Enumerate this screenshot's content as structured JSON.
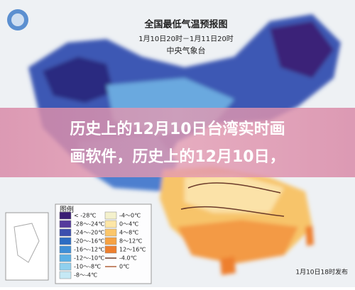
{
  "header": {
    "title": "全国最低气温预报图",
    "time": "1月10日20时－1月11日20时",
    "agency": "中央气象台"
  },
  "banner": {
    "lines": [
      "历史上的12月10日台湾实时画",
      "画软件，历史上的12月10日，"
    ]
  },
  "legend": {
    "title": "图例",
    "items": [
      {
        "label": "< -28℃",
        "color": "#3a1d74"
      },
      {
        "label": "-28～-24℃",
        "color": "#553a9c"
      },
      {
        "label": "-24～-20℃",
        "color": "#3b4eae"
      },
      {
        "label": "-20～-16℃",
        "color": "#2c6cc3"
      },
      {
        "label": "-16～-12℃",
        "color": "#3f8fd7"
      },
      {
        "label": "-12～-10℃",
        "color": "#5bb0e5"
      },
      {
        "label": "-10～-8℃",
        "color": "#90d0ee"
      },
      {
        "label": "-8～-4℃",
        "color": "#c5e8f4"
      },
      {
        "label": "-4～0℃",
        "color": "#f4f1cc"
      },
      {
        "label": "0～4℃",
        "color": "#fde6a6"
      },
      {
        "label": "4～8℃",
        "color": "#fbc66a"
      },
      {
        "label": "8～12℃",
        "color": "#f6a243"
      },
      {
        "label": "12～16℃",
        "color": "#ee7f2e"
      }
    ],
    "lines": [
      {
        "label": "-4.0℃",
        "color": "#6b3b2a"
      },
      {
        "label": "0℃",
        "color": "#b0603a"
      }
    ]
  },
  "footer": "1月10日18时发布"
}
